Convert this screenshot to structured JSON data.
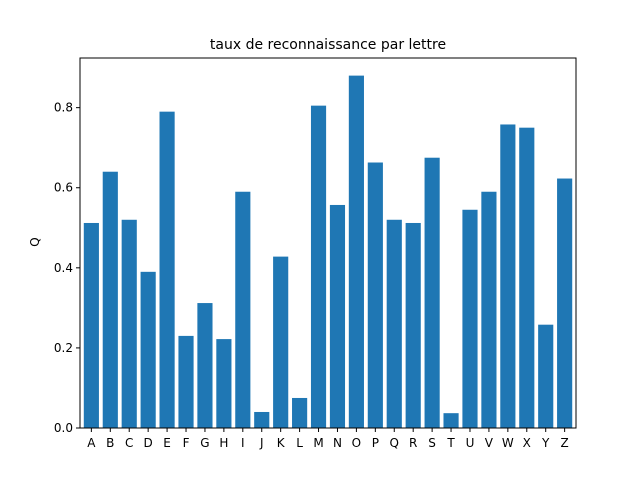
{
  "chart_data": {
    "type": "bar",
    "title": "taux de reconnaissance par lettre",
    "xlabel": "",
    "ylabel": "Q",
    "categories": [
      "A",
      "B",
      "C",
      "D",
      "E",
      "F",
      "G",
      "H",
      "I",
      "J",
      "K",
      "L",
      "M",
      "N",
      "O",
      "P",
      "Q",
      "R",
      "S",
      "T",
      "U",
      "V",
      "W",
      "X",
      "Y",
      "Z"
    ],
    "values": [
      0.512,
      0.64,
      0.52,
      0.39,
      0.79,
      0.23,
      0.312,
      0.222,
      0.59,
      0.04,
      0.428,
      0.075,
      0.805,
      0.557,
      0.88,
      0.663,
      0.52,
      0.512,
      0.675,
      0.037,
      0.545,
      0.59,
      0.758,
      0.75,
      0.258,
      0.623
    ],
    "ylim": [
      0,
      0.924
    ],
    "yticks": [
      0.0,
      0.2,
      0.4,
      0.6,
      0.8
    ],
    "ytick_labels": [
      "0.0",
      "0.2",
      "0.4",
      "0.6",
      "0.8"
    ],
    "grid": false,
    "bar_color": "#1f77b4"
  }
}
